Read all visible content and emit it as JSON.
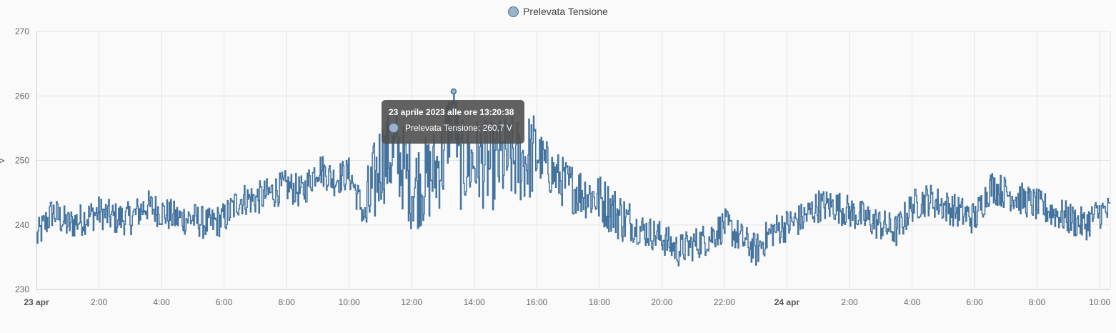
{
  "legend": {
    "label": "Prelevata Tensione"
  },
  "colors": {
    "line": "#44739e",
    "grid": "#e4e4e4",
    "tick": "#666666"
  },
  "axis": {
    "y_unit": "V"
  },
  "tooltip": {
    "title": "23 aprile 2023 alle ore 13:20:38",
    "value_text": "Prelevata Tensione: 260,7 V"
  },
  "chart_data": {
    "type": "line",
    "ylabel": "V",
    "ylim": [
      230,
      270
    ],
    "yticks": [
      230,
      240,
      250,
      260,
      270
    ],
    "xlim": [
      "23 apr 00:00",
      "24 apr 10:20"
    ],
    "xticks": [
      {
        "label": "23 apr",
        "hour": 0,
        "bold": true
      },
      {
        "label": "2:00",
        "hour": 2
      },
      {
        "label": "4:00",
        "hour": 4
      },
      {
        "label": "6:00",
        "hour": 6
      },
      {
        "label": "8:00",
        "hour": 8
      },
      {
        "label": "10:00",
        "hour": 10
      },
      {
        "label": "12:00",
        "hour": 12
      },
      {
        "label": "14:00",
        "hour": 14
      },
      {
        "label": "16:00",
        "hour": 16
      },
      {
        "label": "18:00",
        "hour": 18
      },
      {
        "label": "20:00",
        "hour": 20
      },
      {
        "label": "22:00",
        "hour": 22
      },
      {
        "label": "24 apr",
        "hour": 24,
        "bold": true
      },
      {
        "label": "2:00",
        "hour": 26
      },
      {
        "label": "4:00",
        "hour": 28
      },
      {
        "label": "6:00",
        "hour": 30
      },
      {
        "label": "8:00",
        "hour": 32
      },
      {
        "label": "10:00",
        "hour": 34
      }
    ],
    "grid": true,
    "legend_position": "top-center",
    "series": [
      {
        "name": "Prelevata Tensione",
        "x_hours": [
          0,
          0.5,
          1,
          1.5,
          2,
          2.5,
          3,
          3.5,
          4,
          4.5,
          5,
          5.5,
          6,
          6.5,
          7,
          7.5,
          8,
          8.5,
          9,
          9.5,
          10,
          10.5,
          11,
          11.5,
          12,
          12.5,
          13,
          13.34,
          13.5,
          14,
          14.5,
          15,
          15.5,
          16,
          16.5,
          17,
          17.5,
          18,
          18.5,
          19,
          19.5,
          20,
          20.5,
          21,
          21.5,
          22,
          22.5,
          23,
          23.5,
          24,
          24.5,
          25,
          25.5,
          26,
          26.5,
          27,
          27.5,
          28,
          28.5,
          29,
          29.5,
          30,
          30.5,
          31,
          31.5,
          32,
          32.5,
          33,
          33.5,
          34,
          34.33
        ],
        "values": [
          238,
          242,
          240,
          241,
          242,
          241,
          241,
          243,
          242,
          241,
          241,
          240,
          241,
          244,
          244,
          245,
          246,
          245,
          249,
          247,
          248,
          241,
          250,
          251,
          246,
          247,
          250,
          260.7,
          249,
          250,
          249,
          250,
          250,
          251,
          248,
          246,
          245,
          244,
          242,
          240,
          239,
          238,
          236,
          237,
          238,
          240,
          238,
          236,
          239,
          240,
          241,
          243,
          243,
          242,
          241,
          240,
          239,
          243,
          244,
          243,
          242,
          241,
          246,
          245,
          244,
          243,
          242,
          241,
          240,
          242,
          242
        ]
      }
    ]
  }
}
